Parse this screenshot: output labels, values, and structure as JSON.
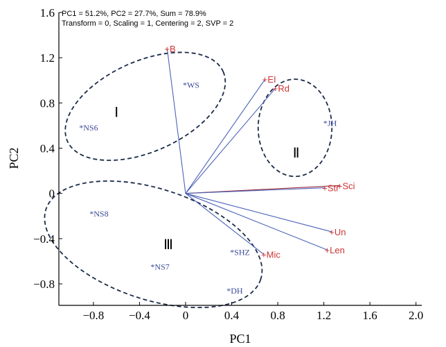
{
  "chart_data": {
    "type": "scatter",
    "info_lines": [
      "PC1 = 51.2%, PC2 = 27.7%, Sum = 78.9%",
      "Transform = 0, Scaling = 1, Centering = 2, SVP = 2"
    ],
    "xlabel": "PC1",
    "ylabel": "PC2",
    "xlim": [
      -1.1,
      2.05
    ],
    "ylim": [
      -0.99,
      1.6
    ],
    "xticks": [
      -0.8,
      -0.4,
      0,
      0.4,
      0.8,
      1.2,
      1.6,
      2.0
    ],
    "xtick_labels": [
      "−0.8",
      "−0.4",
      "0",
      "0.4",
      "0.8",
      "1.2",
      "1.6",
      "2.0"
    ],
    "yticks": [
      -0.8,
      -0.4,
      0,
      0.4,
      0.8,
      1.2,
      1.6
    ],
    "ytick_labels": [
      "−0.8",
      "−0.4",
      "0",
      "0.4",
      "0.8",
      "1.2",
      "1.6"
    ],
    "origin": [
      0,
      0
    ],
    "variables": [
      {
        "label": "+B",
        "x": -0.16,
        "y": 1.28
      },
      {
        "label": "+EI",
        "x": 0.69,
        "y": 1.01
      },
      {
        "label": "+Rd",
        "x": 0.78,
        "y": 0.93
      },
      {
        "label": "+Sci",
        "x": 1.34,
        "y": 0.07
      },
      {
        "label": "+Str",
        "x": 1.21,
        "y": 0.05
      },
      {
        "label": "+Un",
        "x": 1.27,
        "y": -0.34
      },
      {
        "label": "+Len",
        "x": 1.23,
        "y": -0.5
      },
      {
        "label": "+Mic",
        "x": 0.68,
        "y": -0.54
      }
    ],
    "observations": [
      {
        "label": "*WS",
        "x": 0.0,
        "y": 0.96
      },
      {
        "label": "*NS6",
        "x": -0.9,
        "y": 0.58
      },
      {
        "label": "*JH",
        "x": 1.22,
        "y": 0.62
      },
      {
        "label": "*NS8",
        "x": -0.81,
        "y": -0.18
      },
      {
        "label": "*SHZ",
        "x": 0.41,
        "y": -0.52
      },
      {
        "label": "*NS7",
        "x": -0.28,
        "y": -0.65
      },
      {
        "label": "*DH",
        "x": 0.38,
        "y": -0.86
      }
    ],
    "groups": [
      {
        "label": "Ⅰ",
        "x": -0.6,
        "y": 0.72,
        "cx": -0.35,
        "cy": 0.77,
        "rx": 0.74,
        "ry": 0.4,
        "rot_deg": 24
      },
      {
        "label": "Ⅱ",
        "x": 0.96,
        "y": 0.36,
        "cx": 0.95,
        "cy": 0.58,
        "rx": 0.32,
        "ry": 0.43,
        "rot_deg": 0
      },
      {
        "label": "Ⅲ",
        "x": -0.15,
        "y": -0.45,
        "cx": -0.28,
        "cy": -0.45,
        "rx": 0.98,
        "ry": 0.49,
        "rot_deg": -18
      }
    ],
    "colors": {
      "variable": "#cc3333",
      "observation": "#3a4a9a",
      "vector": "#4a62b8",
      "ellipse": "#1a2a48",
      "axes": "#000000"
    },
    "grid": false,
    "legend": "none"
  }
}
